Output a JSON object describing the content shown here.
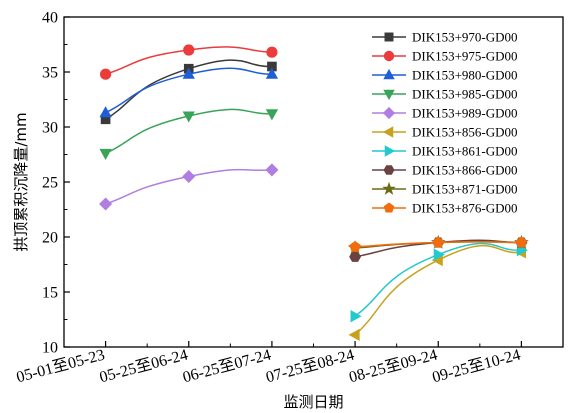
{
  "chart_data": {
    "type": "line",
    "xlabel": "监测日期",
    "ylabel": "拱顶累积沉降量/mm",
    "ylim": [
      10,
      40
    ],
    "yticks": [
      10,
      15,
      20,
      25,
      30,
      35,
      40
    ],
    "categories": [
      "05-01至05-23",
      "05-25至06-24",
      "06-25至07-24",
      "07-25至08-24",
      "08-25至09-24",
      "09-25至10-24"
    ],
    "grid": false,
    "legend_position": "top-right",
    "series": [
      {
        "name": "DIK153+970-GD00",
        "color": "#3a3a3a",
        "marker": "square",
        "x": [
          0,
          1,
          2
        ],
        "values": [
          30.7,
          35.3,
          35.5
        ]
      },
      {
        "name": "DIK153+975-GD00",
        "color": "#ec3b3b",
        "marker": "circle",
        "x": [
          0,
          1,
          2
        ],
        "values": [
          34.8,
          37.0,
          36.8
        ]
      },
      {
        "name": "DIK153+980-GD00",
        "color": "#1f5fd6",
        "marker": "triangle-up",
        "x": [
          0,
          1,
          2
        ],
        "values": [
          31.3,
          34.8,
          34.8
        ]
      },
      {
        "name": "DIK153+985-GD00",
        "color": "#3aa35a",
        "marker": "triangle-down",
        "x": [
          0,
          1,
          2
        ],
        "values": [
          27.6,
          31.0,
          31.2
        ]
      },
      {
        "name": "DIK153+989-GD00",
        "color": "#b07ee0",
        "marker": "diamond",
        "x": [
          0,
          1,
          2
        ],
        "values": [
          23.0,
          25.5,
          26.1
        ]
      },
      {
        "name": "DIK153+856-GD00",
        "color": "#c8a21c",
        "marker": "triangle-left",
        "x": [
          3,
          4,
          5
        ],
        "values": [
          11.1,
          17.9,
          18.6
        ]
      },
      {
        "name": "DIK153+861-GD00",
        "color": "#22c9cf",
        "marker": "triangle-right",
        "x": [
          3,
          4,
          5
        ],
        "values": [
          12.8,
          18.4,
          18.8
        ]
      },
      {
        "name": "DIK153+866-GD00",
        "color": "#6b4242",
        "marker": "hexagon",
        "x": [
          3,
          4,
          5
        ],
        "values": [
          18.2,
          19.5,
          19.5
        ]
      },
      {
        "name": "DIK153+871-GD00",
        "color": "#6b6b14",
        "marker": "star",
        "x": [
          3,
          4,
          5
        ],
        "values": [
          19.0,
          19.5,
          19.5
        ]
      },
      {
        "name": "DIK153+876-GD00",
        "color": "#f26b0c",
        "marker": "pentagon",
        "x": [
          3,
          4,
          5
        ],
        "values": [
          19.1,
          19.5,
          19.5
        ]
      }
    ]
  }
}
